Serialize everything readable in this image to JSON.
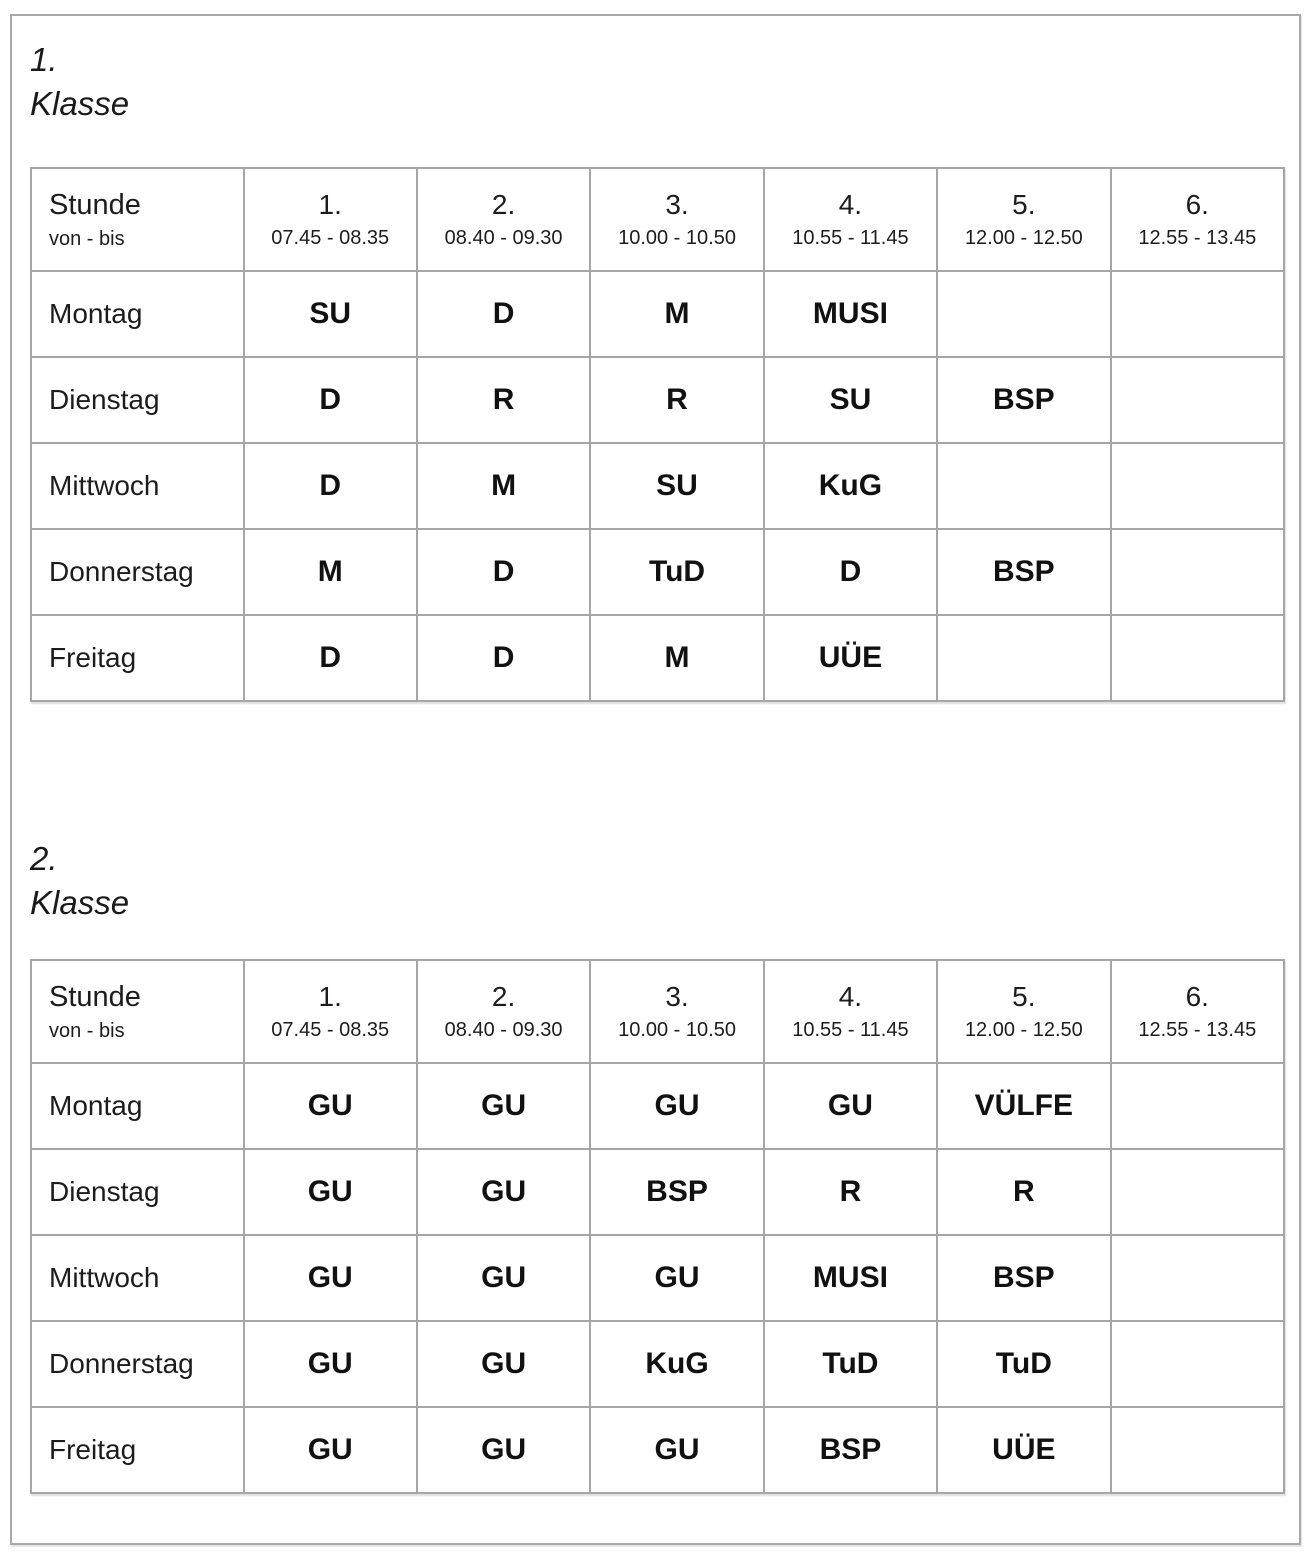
{
  "page": {
    "colors": {
      "background": "#ffffff",
      "table_border": "#a6a6a6",
      "frame_border": "#a9a9a9",
      "text": "#1c1c1c"
    },
    "sections": [
      {
        "title_number": "1.",
        "title_label": "Klasse",
        "table": {
          "corner_title": "Stunde",
          "corner_subtitle": "von - bis",
          "periods": [
            {
              "num": "1.",
              "time": "07.45 - 08.35"
            },
            {
              "num": "2.",
              "time": "08.40 - 09.30"
            },
            {
              "num": "3.",
              "time": "10.00 - 10.50"
            },
            {
              "num": "4.",
              "time": "10.55 - 11.45"
            },
            {
              "num": "5.",
              "time": "12.00 - 12.50"
            },
            {
              "num": "6.",
              "time": "12.55 - 13.45"
            }
          ],
          "rows": [
            {
              "day": "Montag",
              "cells": [
                "SU",
                "D",
                "M",
                "MUSI",
                "",
                ""
              ]
            },
            {
              "day": "Dienstag",
              "cells": [
                "D",
                "R",
                "R",
                "SU",
                "BSP",
                ""
              ]
            },
            {
              "day": "Mittwoch",
              "cells": [
                "D",
                "M",
                "SU",
                "KuG",
                "",
                ""
              ]
            },
            {
              "day": "Donnerstag",
              "cells": [
                "M",
                "D",
                "TuD",
                "D",
                "BSP",
                ""
              ]
            },
            {
              "day": "Freitag",
              "cells": [
                "D",
                "D",
                "M",
                "UÜE",
                "",
                ""
              ]
            }
          ]
        }
      },
      {
        "title_number": "2.",
        "title_label": "Klasse",
        "table": {
          "corner_title": "Stunde",
          "corner_subtitle": "von - bis",
          "periods": [
            {
              "num": "1.",
              "time": "07.45 - 08.35"
            },
            {
              "num": "2.",
              "time": "08.40 - 09.30"
            },
            {
              "num": "3.",
              "time": "10.00 - 10.50"
            },
            {
              "num": "4.",
              "time": "10.55 - 11.45"
            },
            {
              "num": "5.",
              "time": "12.00 - 12.50"
            },
            {
              "num": "6.",
              "time": "12.55 - 13.45"
            }
          ],
          "rows": [
            {
              "day": "Montag",
              "cells": [
                "GU",
                "GU",
                "GU",
                "GU",
                "VÜLFE",
                ""
              ]
            },
            {
              "day": "Dienstag",
              "cells": [
                "GU",
                "GU",
                "BSP",
                "R",
                "R",
                ""
              ]
            },
            {
              "day": "Mittwoch",
              "cells": [
                "GU",
                "GU",
                "GU",
                "MUSI",
                "BSP",
                ""
              ]
            },
            {
              "day": "Donnerstag",
              "cells": [
                "GU",
                "GU",
                "KuG",
                "TuD",
                "TuD",
                ""
              ]
            },
            {
              "day": "Freitag",
              "cells": [
                "GU",
                "GU",
                "GU",
                "BSP",
                "UÜE",
                ""
              ]
            }
          ]
        }
      }
    ]
  }
}
